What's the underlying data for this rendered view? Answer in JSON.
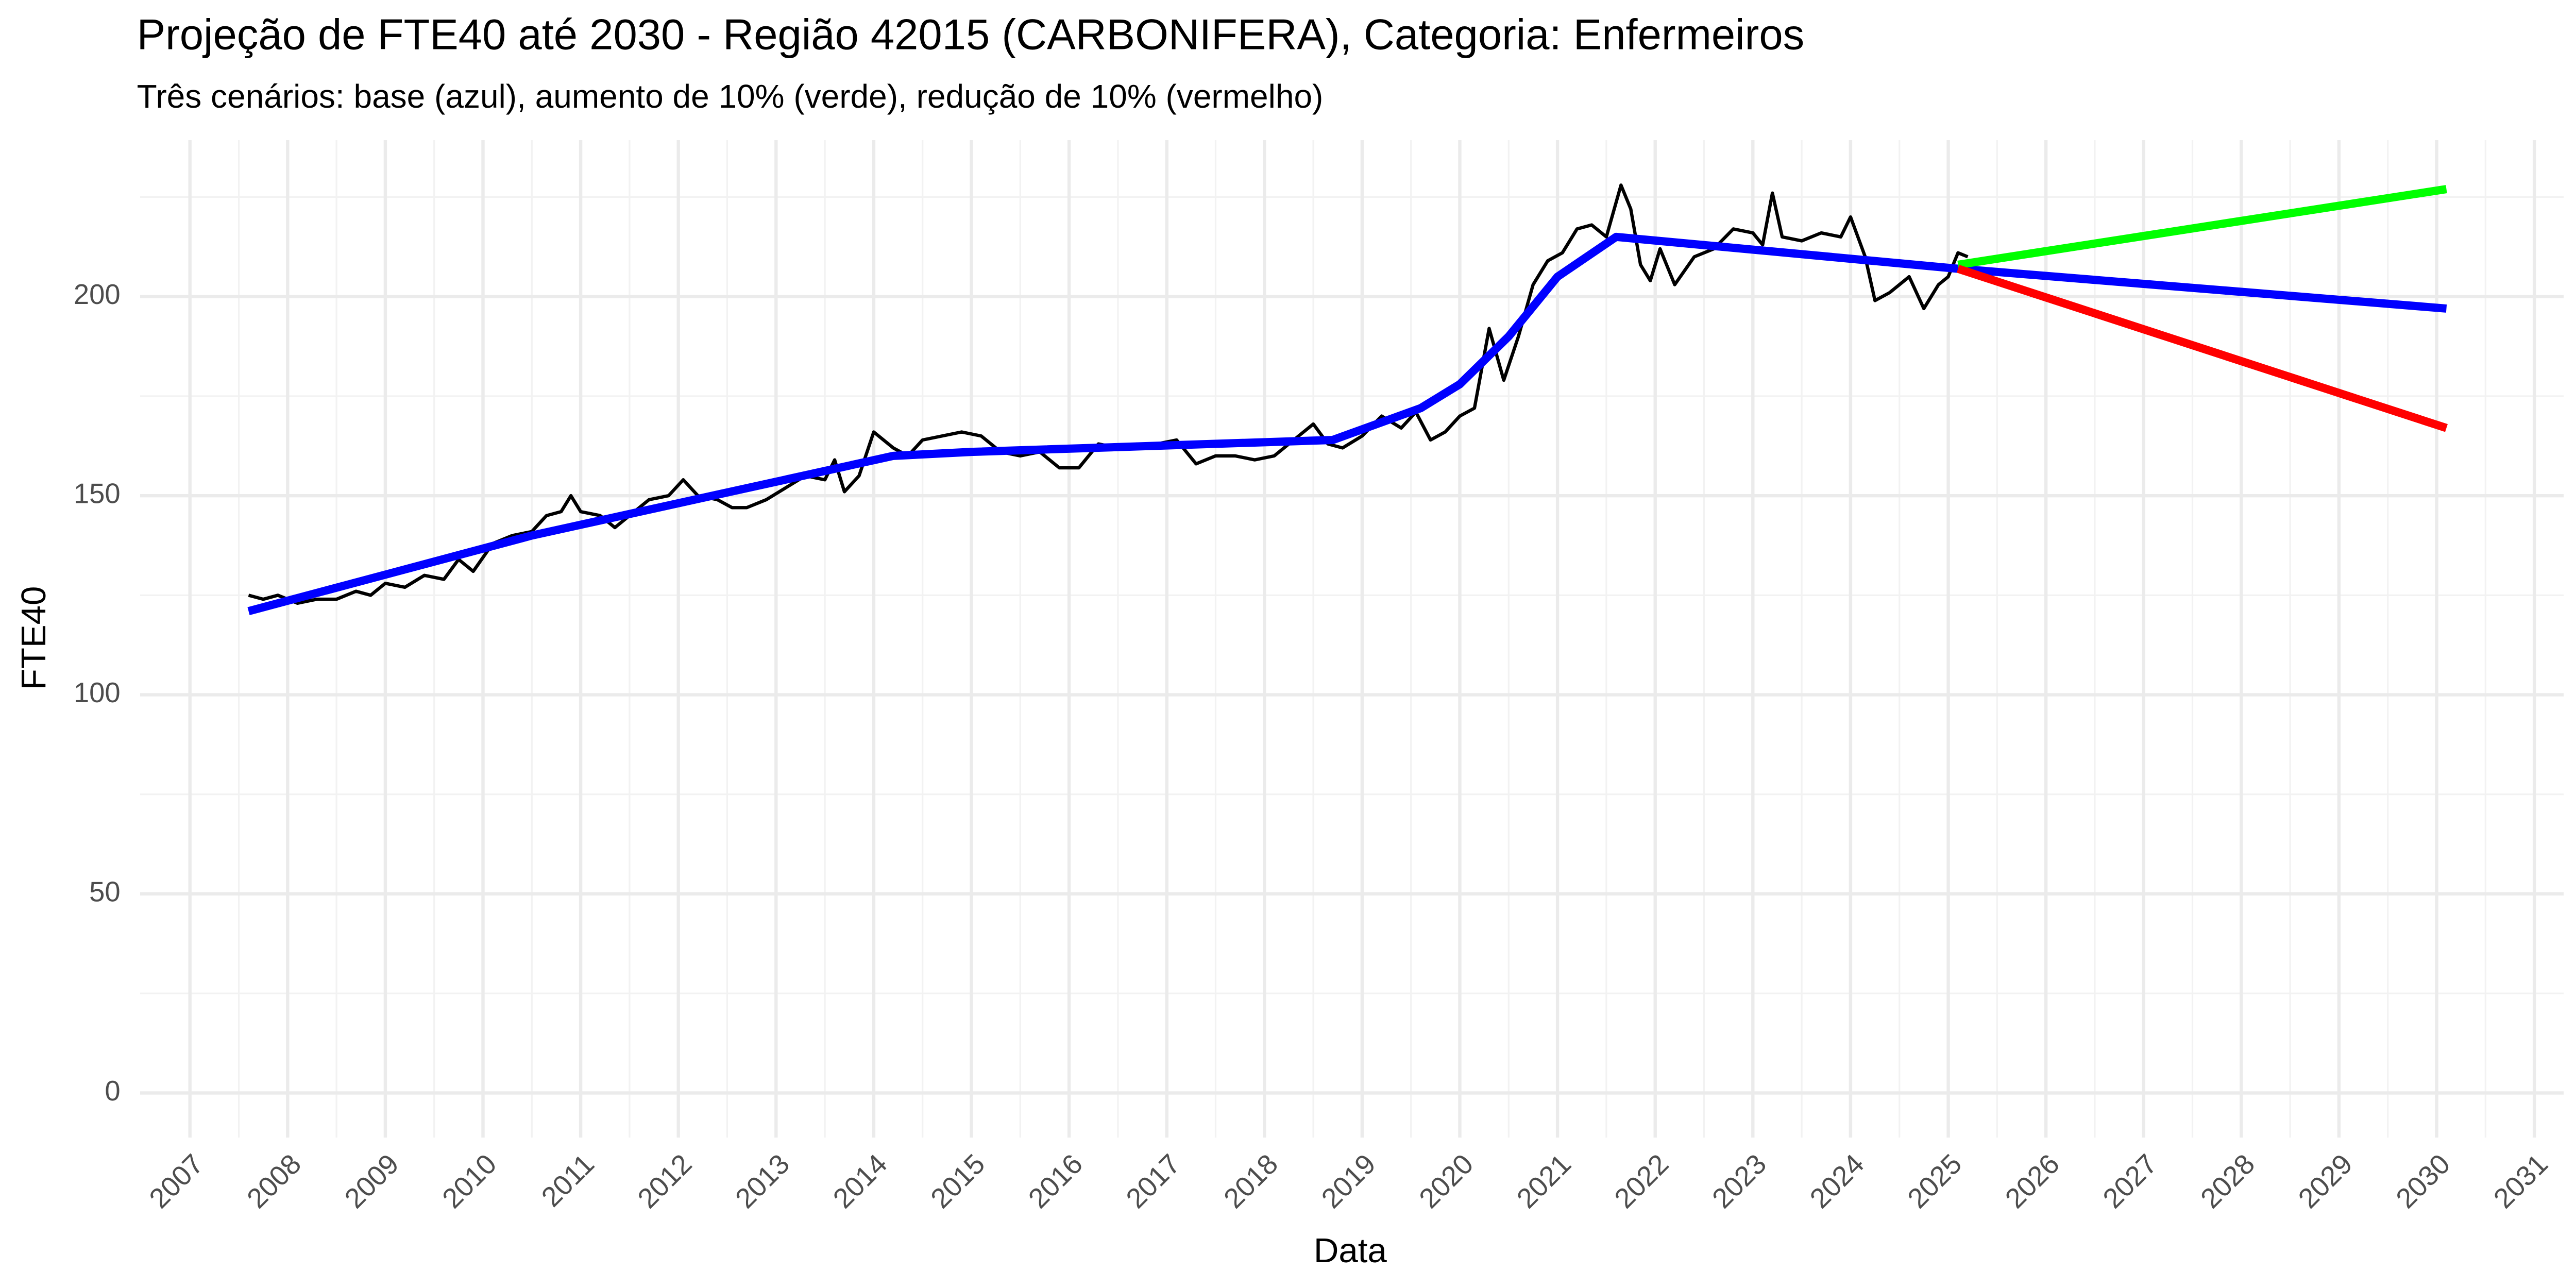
{
  "chart_data": {
    "type": "line",
    "title": "Projeção de FTE40 até 2030 - Região 42015 (CARBONIFERA), Categoria: Enfermeiros",
    "subtitle": "Três cenários: base (azul), aumento de 10% (verde), redução de 10% (vermelho)",
    "x_label": "Data",
    "y_label": "FTE40",
    "xlim": [
      2006.49,
      2031.3
    ],
    "ylim": [
      -11.2,
      239.3
    ],
    "xticks": [
      2007,
      2008,
      2009,
      2010,
      2011,
      2012,
      2013,
      2014,
      2015,
      2016,
      2017,
      2018,
      2019,
      2020,
      2021,
      2022,
      2023,
      2024,
      2025,
      2026,
      2027,
      2028,
      2029,
      2030,
      2031
    ],
    "yticks": [
      0,
      50,
      100,
      150,
      200
    ],
    "grid": true,
    "series": [
      {
        "color": "#000000",
        "x": [
          2007.6,
          2007.75,
          2007.9,
          2008.1,
          2008.3,
          2008.5,
          2008.7,
          2008.85,
          2009.0,
          2009.2,
          2009.4,
          2009.6,
          2009.75,
          2009.9,
          2010.1,
          2010.3,
          2010.5,
          2010.65,
          2010.8,
          2010.9,
          2011.0,
          2011.2,
          2011.35,
          2011.5,
          2011.7,
          2011.9,
          2012.05,
          2012.2,
          2012.4,
          2012.55,
          2012.7,
          2012.9,
          2013.1,
          2013.3,
          2013.5,
          2013.6,
          2013.7,
          2013.85,
          2014.0,
          2014.2,
          2014.35,
          2014.5,
          2014.7,
          2014.9,
          2015.1,
          2015.3,
          2015.5,
          2015.7,
          2015.9,
          2016.1,
          2016.3,
          2016.5,
          2016.7,
          2016.9,
          2017.1,
          2017.3,
          2017.5,
          2017.7,
          2017.9,
          2018.1,
          2018.3,
          2018.5,
          2018.65,
          2018.8,
          2019.0,
          2019.2,
          2019.4,
          2019.55,
          2019.7,
          2019.85,
          2020.0,
          2020.15,
          2020.3,
          2020.45,
          2020.6,
          2020.75,
          2020.9,
          2021.05,
          2021.2,
          2021.35,
          2021.5,
          2021.65,
          2021.75,
          2021.85,
          2021.95,
          2022.05,
          2022.2,
          2022.4,
          2022.6,
          2022.8,
          2023.0,
          2023.1,
          2023.2,
          2023.3,
          2023.5,
          2023.7,
          2023.9,
          2024.0,
          2024.15,
          2024.25,
          2024.4,
          2024.6,
          2024.75,
          2024.9,
          2025.0,
          2025.1,
          2025.2
        ],
        "values": [
          125,
          124,
          125,
          123,
          124,
          124,
          126,
          125,
          128,
          127,
          130,
          129,
          134,
          131,
          138,
          140,
          141,
          145,
          146,
          150,
          146,
          145,
          142,
          145,
          149,
          150,
          154,
          150,
          149,
          147,
          147,
          149,
          152,
          155,
          154,
          159,
          151,
          155,
          166,
          162,
          160,
          164,
          165,
          166,
          165,
          161,
          160,
          161,
          157,
          157,
          163,
          162,
          163,
          163,
          164,
          158,
          160,
          160,
          159,
          160,
          164,
          168,
          163,
          162,
          165,
          170,
          167,
          171,
          164,
          166,
          170,
          172,
          192,
          179,
          190,
          203,
          209,
          211,
          217,
          218,
          215,
          228,
          222,
          208,
          204,
          212,
          203,
          210,
          212,
          217,
          216,
          213,
          226,
          215,
          214,
          216,
          215,
          220,
          210,
          199,
          201,
          205,
          197,
          203,
          205,
          211,
          210
        ]
      },
      {
        "color": "#0000ff",
        "x": [
          2007.6,
          2010.5,
          2014.2,
          2015.0,
          2018.7,
          2019.6,
          2020.0,
          2020.5,
          2021.0,
          2021.6,
          2025.1,
          2030.1
        ],
        "values": [
          121,
          140,
          160,
          161,
          164,
          172,
          178,
          190,
          205,
          215,
          207,
          197
        ]
      },
      {
        "color": "#00ff00",
        "x": [
          2025.1,
          2030.1
        ],
        "values": [
          208,
          227
        ]
      },
      {
        "color": "#ff0000",
        "x": [
          2025.1,
          2030.1
        ],
        "values": [
          207,
          167
        ]
      }
    ]
  }
}
